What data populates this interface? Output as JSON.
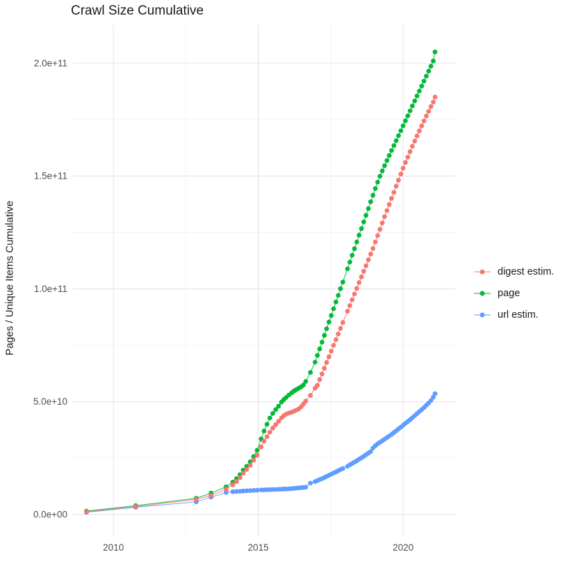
{
  "title": "Crawl Size Cumulative",
  "legend": {
    "items": [
      {
        "label": "digest estim.",
        "color": "#F8766D"
      },
      {
        "label": "page",
        "color": "#00BA38"
      },
      {
        "label": "url estim.",
        "color": "#619CFF"
      }
    ]
  },
  "colors": {
    "digest": "#F8766D",
    "page": "#00BA38",
    "url": "#619CFF",
    "grid_major": "#E7E7E7",
    "grid_minor": "#F1F1F1",
    "tick_text": "#4D4D4D",
    "title_text": "#1a1a1a"
  },
  "chart_data": {
    "type": "scatter",
    "title": "Crawl Size Cumulative",
    "xlabel": "",
    "ylabel": "Pages / Unique Items Cumulative",
    "legend_position": "right",
    "grid": true,
    "x_unit": "year (decimal, one point per crawl)",
    "values_unit": "billions (1e9) of pages / unique items",
    "xlim": [
      2008.58,
      2021.82
    ],
    "ylim": [
      -9000000000,
      217000000000
    ],
    "x_ticks": [
      {
        "value": 2010,
        "label": "2010"
      },
      {
        "value": 2015,
        "label": "2015"
      },
      {
        "value": 2020,
        "label": "2020"
      }
    ],
    "x_minor": [
      2012.5,
      2017.5
    ],
    "y_ticks": [
      {
        "value_e9": 0,
        "label": "0.0e+00"
      },
      {
        "value_e9": 50,
        "label": "5.0e+10"
      },
      {
        "value_e9": 100,
        "label": "1.0e+11"
      },
      {
        "value_e9": 150,
        "label": "1.5e+11"
      },
      {
        "value_e9": 200,
        "label": "2.0e+11"
      }
    ],
    "y_minor_e9": [
      25,
      75,
      125,
      175
    ],
    "x": [
      2009.07,
      2010.77,
      2012.86,
      2013.37,
      2013.89,
      2014.12,
      2014.25,
      2014.37,
      2014.48,
      2014.6,
      2014.72,
      2014.84,
      2014.96,
      2015.1,
      2015.2,
      2015.3,
      2015.4,
      2015.5,
      2015.6,
      2015.7,
      2015.8,
      2015.88,
      2015.96,
      2016.06,
      2016.16,
      2016.24,
      2016.32,
      2016.4,
      2016.48,
      2016.56,
      2016.64,
      2016.8,
      2016.96,
      2017.04,
      2017.12,
      2017.2,
      2017.28,
      2017.36,
      2017.44,
      2017.52,
      2017.6,
      2017.68,
      2017.76,
      2017.84,
      2017.92,
      2018.08,
      2018.16,
      2018.24,
      2018.32,
      2018.4,
      2018.48,
      2018.56,
      2018.64,
      2018.72,
      2018.8,
      2018.88,
      2018.96,
      2019.04,
      2019.12,
      2019.2,
      2019.28,
      2019.36,
      2019.44,
      2019.52,
      2019.6,
      2019.68,
      2019.76,
      2019.84,
      2019.92,
      2020.0,
      2020.08,
      2020.16,
      2020.24,
      2020.32,
      2020.4,
      2020.48,
      2020.56,
      2020.64,
      2020.72,
      2020.8,
      2020.88,
      2020.96,
      2021.04,
      2021.1
    ],
    "series": [
      {
        "name": "digest estim.",
        "color": "#F8766D",
        "values_e9": [
          1.2,
          3.5,
          6.7,
          8.5,
          11.3,
          13.2,
          14.6,
          16.3,
          18.3,
          20.0,
          21.8,
          24.1,
          26.3,
          30.0,
          32.5,
          34.5,
          36.5,
          38.3,
          39.8,
          41.3,
          42.8,
          43.8,
          44.5,
          45.0,
          45.4,
          45.8,
          46.3,
          46.8,
          47.8,
          49.0,
          50.3,
          52.8,
          56.0,
          57.3,
          59.8,
          62.3,
          64.8,
          67.4,
          69.9,
          72.4,
          75.0,
          77.5,
          80.0,
          82.5,
          85.1,
          90.1,
          92.6,
          95.2,
          97.7,
          100.2,
          102.8,
          105.3,
          107.8,
          110.3,
          112.9,
          115.4,
          117.9,
          120.8,
          123.6,
          126.4,
          129.2,
          132.0,
          134.7,
          137.4,
          140.1,
          142.8,
          145.5,
          148.2,
          150.9,
          153.5,
          156.0,
          158.4,
          160.8,
          163.2,
          165.5,
          167.8,
          170.0,
          172.2,
          174.4,
          176.6,
          178.7,
          180.8,
          182.8,
          185.0
        ]
      },
      {
        "name": "page",
        "color": "#00BA38",
        "values_e9": [
          1.5,
          3.9,
          7.2,
          9.5,
          12.3,
          14.4,
          15.9,
          17.7,
          19.7,
          21.4,
          23.4,
          25.7,
          28.5,
          33.5,
          37.0,
          40.0,
          42.8,
          44.8,
          46.5,
          48.0,
          49.8,
          50.9,
          51.9,
          53.0,
          54.0,
          54.8,
          55.4,
          56.0,
          56.6,
          57.4,
          59.0,
          63.0,
          67.5,
          70.5,
          73.4,
          76.4,
          79.4,
          82.3,
          85.3,
          88.2,
          91.2,
          94.2,
          97.1,
          100.1,
          103.0,
          108.9,
          111.9,
          114.9,
          117.8,
          120.8,
          123.8,
          126.7,
          129.7,
          132.6,
          135.6,
          138.6,
          141.5,
          144.5,
          147.3,
          149.9,
          152.3,
          154.6,
          156.9,
          159.1,
          161.3,
          163.5,
          165.7,
          167.9,
          170.1,
          172.3,
          174.5,
          176.7,
          178.9,
          181.1,
          183.3,
          185.5,
          187.7,
          189.9,
          192.1,
          194.3,
          196.5,
          198.7,
          201.0,
          205.0
        ]
      },
      {
        "name": "url estim.",
        "color": "#619CFF",
        "values_e9": [
          1.0,
          3.2,
          5.6,
          7.7,
          9.8,
          10.1,
          10.2,
          10.3,
          10.4,
          10.5,
          10.6,
          10.7,
          10.8,
          10.9,
          10.9,
          11.0,
          11.0,
          11.1,
          11.1,
          11.2,
          11.2,
          11.3,
          11.3,
          11.4,
          11.5,
          11.6,
          11.7,
          11.8,
          11.9,
          12.0,
          12.1,
          13.9,
          14.6,
          15.0,
          15.5,
          15.9,
          16.4,
          16.9,
          17.4,
          17.9,
          18.4,
          18.9,
          19.4,
          19.9,
          20.4,
          21.4,
          22.0,
          22.6,
          23.2,
          23.8,
          24.5,
          25.1,
          25.8,
          26.5,
          27.2,
          27.9,
          29.5,
          30.5,
          31.3,
          32.0,
          32.7,
          33.4,
          34.1,
          34.8,
          35.5,
          36.3,
          37.1,
          37.9,
          38.7,
          39.6,
          40.4,
          41.2,
          42.0,
          42.9,
          43.8,
          44.7,
          45.6,
          46.5,
          47.4,
          48.4,
          49.4,
          50.5,
          52.0,
          53.6
        ]
      }
    ]
  }
}
